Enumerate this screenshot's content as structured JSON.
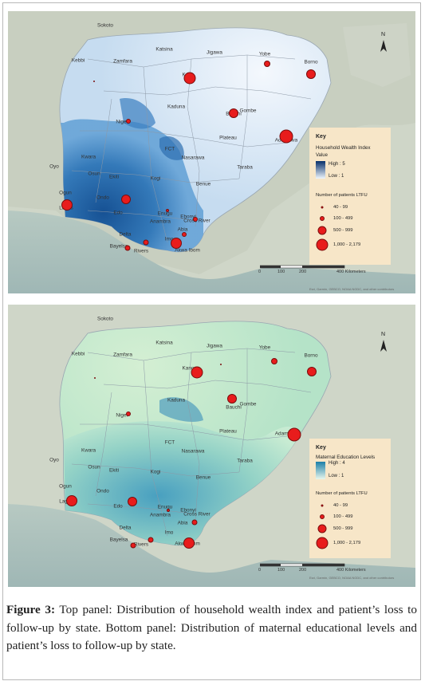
{
  "north_label": "N",
  "scale_ticks": [
    "0",
    "100",
    "200",
    "400 Kilometers"
  ],
  "credit_text": "Esri, Garmin, GEBCO, NOAA NGDC, and other contributors",
  "panels": [
    {
      "legend": {
        "key": "Key",
        "layer_title": "Household Wealth Index",
        "value_label": "Value",
        "high": "High : 5",
        "low": "Low : 1",
        "bubble_title": "Number of patients LTFU",
        "classes": [
          "40 - 99",
          "100 - 499",
          "500 - 999",
          "1,000 - 2,179"
        ],
        "colors": {
          "high": "#08306b",
          "low": "#eef5fc",
          "bubble": "#e81c1c"
        }
      },
      "labels": [
        "Sokoto",
        "Katsina",
        "Jigawa",
        "Yobe",
        "Borno",
        "Kebbi",
        "Zamfara",
        "Kano",
        "Kaduna",
        "Bauchi",
        "Gombe",
        "Niger",
        "Adamawa",
        "Kwara",
        "Plateau",
        "FCT",
        "Nasarawa",
        "Oyo",
        "Taraba",
        "Osun",
        "Ekiti",
        "Kogi",
        "Benue",
        "Ogun",
        "Ondo",
        "Edo",
        "Lagos",
        "Enugu",
        "Ebonyi",
        "Anambra",
        "Cross River",
        "Delta",
        "Imo",
        "Abia",
        "Bayelsa",
        "Rivers",
        "Akwa Ibom"
      ]
    },
    {
      "legend": {
        "key": "Key",
        "layer_title": "Maternal Education Levels",
        "high": "High : 4",
        "low": "Low : 1",
        "bubble_title": "Number of patients LTFU",
        "classes": [
          "40 - 99",
          "100 - 499",
          "500 - 999",
          "1,000 - 2,179"
        ],
        "colors": {
          "high": "#1c7fa8",
          "low": "#e8f6ec",
          "bubble": "#e81c1c"
        }
      },
      "labels": [
        "Sokoto",
        "Katsina",
        "Jigawa",
        "Yobe",
        "Borno",
        "Kebbi",
        "Zamfara",
        "Kano",
        "Kaduna",
        "Bauchi",
        "Gombe",
        "Niger",
        "Adamawa",
        "Kwara",
        "Plateau",
        "FCT",
        "Nasarawa",
        "Oyo",
        "Taraba",
        "Osun",
        "Ekiti",
        "Kogi",
        "Benue",
        "Ogun",
        "Ondo",
        "Edo",
        "Lagos",
        "Enugu",
        "Ebonyi",
        "Anambra",
        "Cross River",
        "Delta",
        "Imo",
        "Abia",
        "Bayelsa",
        "Rivers",
        "Akwa Ibom"
      ]
    }
  ],
  "caption": {
    "lead": "Figure 3:",
    "text": " Top panel: Distribution of household wealth index and patient’s loss to follow-up by state. Bottom panel: Distribution of maternal educational levels and patient’s loss to follow-up by state."
  }
}
